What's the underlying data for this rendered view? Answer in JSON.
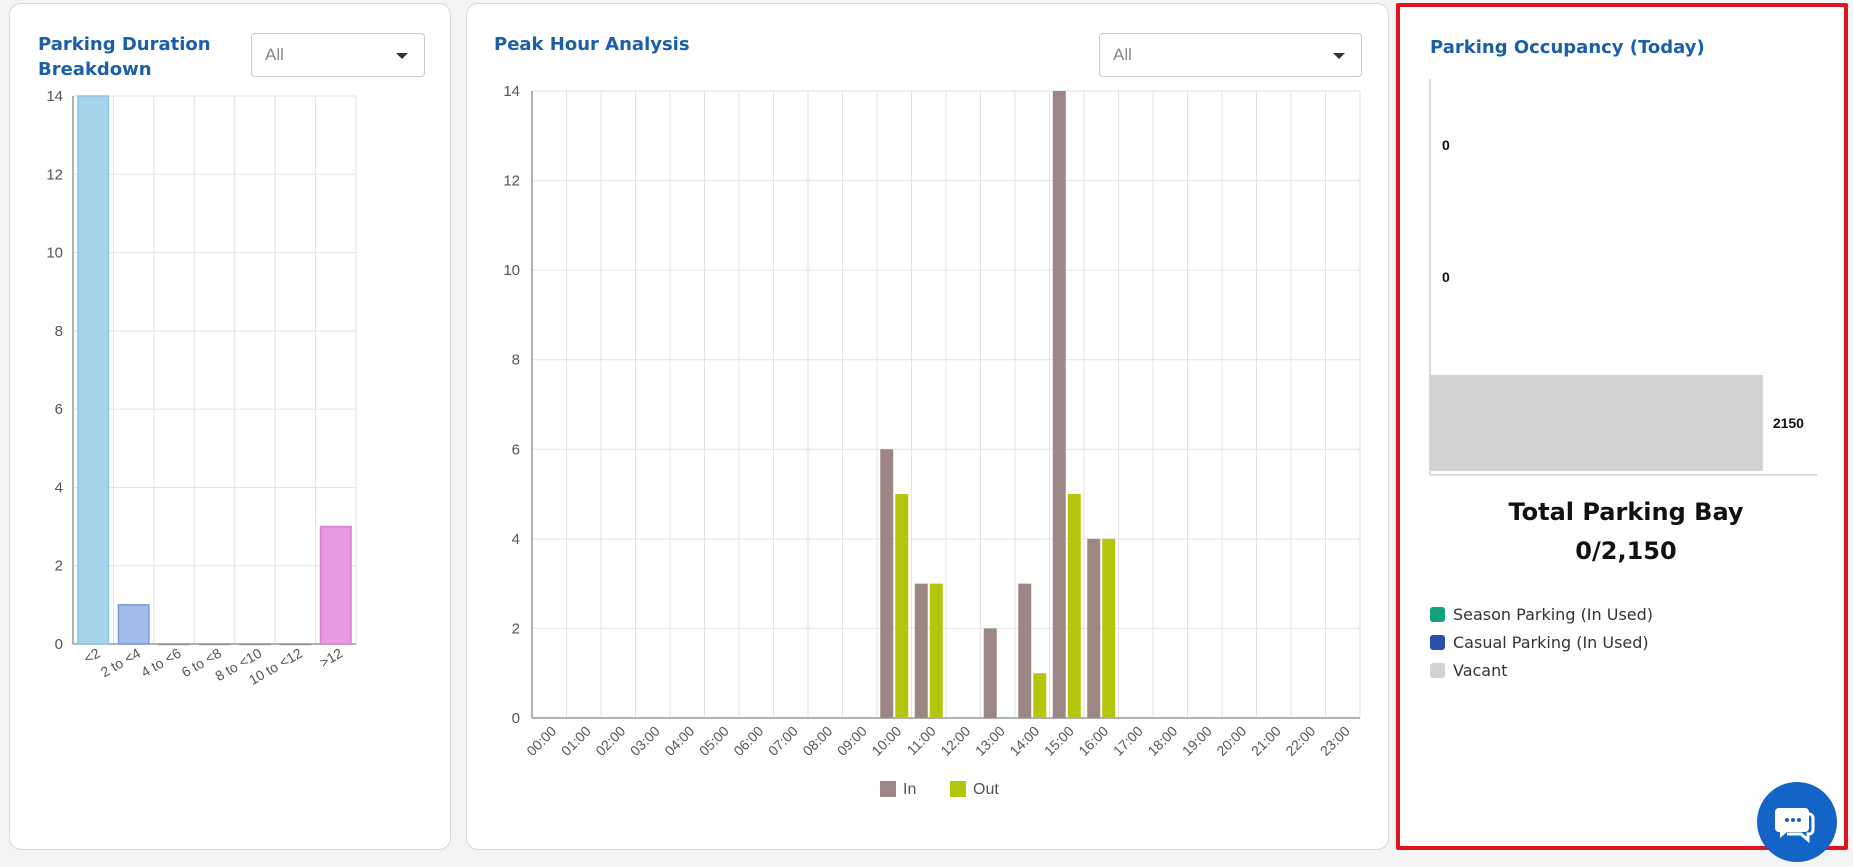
{
  "duration_card": {
    "title_line1": "Parking Duration",
    "title_line2": "Breakdown",
    "filter_value": "All"
  },
  "peak_card": {
    "title": "Peak Hour Analysis",
    "filter_value": "All"
  },
  "occupancy_card": {
    "title": "Parking Occupancy (Today)",
    "total_title": "Total Parking Bay",
    "total_value": "0/2,150",
    "legend": [
      {
        "label": "Season Parking (In Used)",
        "color": "#12a27c"
      },
      {
        "label": "Casual Parking (In Used)",
        "color": "#2d4fb0"
      },
      {
        "label": "Vacant",
        "color": "#d2d2d2"
      }
    ]
  },
  "chat": {
    "icon": "chat-bubble-icon",
    "color": "#1464c8"
  },
  "chart_data": [
    {
      "type": "bar",
      "categories": [
        "<2",
        "2 to <4",
        "4 to <6",
        "6 to <8",
        "8 to <10",
        "10 to <12",
        ">12"
      ],
      "values": [
        14,
        1,
        0,
        0,
        0,
        0,
        3
      ],
      "colors": [
        "#a6d4ea",
        "#a3bbe8",
        "#bbbbbb",
        "#bbbbbb",
        "#bbbbbb",
        "#bbbbbb",
        "#e89bdf"
      ],
      "border_colors": [
        "#8bc6e4",
        "#7a9be0",
        "#999999",
        "#999999",
        "#999999",
        "#999999",
        "#d97fd0"
      ],
      "ylim": [
        0,
        14
      ],
      "yticks": [
        0,
        2,
        4,
        6,
        8,
        10,
        12,
        14
      ],
      "grid": true
    },
    {
      "type": "bar",
      "categories": [
        "00:00",
        "01:00",
        "02:00",
        "03:00",
        "04:00",
        "05:00",
        "06:00",
        "07:00",
        "08:00",
        "09:00",
        "10:00",
        "11:00",
        "12:00",
        "13:00",
        "14:00",
        "15:00",
        "16:00",
        "17:00",
        "18:00",
        "19:00",
        "20:00",
        "21:00",
        "22:00",
        "23:00"
      ],
      "series": [
        {
          "name": "In",
          "color": "#9c8784",
          "values": [
            0,
            0,
            0,
            0,
            0,
            0,
            0,
            0,
            0,
            0,
            6,
            3,
            0,
            2,
            3,
            14,
            4,
            0,
            0,
            0,
            0,
            0,
            0,
            0
          ]
        },
        {
          "name": "Out",
          "color": "#b3c60c",
          "values": [
            0,
            0,
            0,
            0,
            0,
            0,
            0,
            0,
            0,
            0,
            5,
            3,
            0,
            0,
            1,
            5,
            4,
            0,
            0,
            0,
            0,
            0,
            0,
            0
          ]
        }
      ],
      "ylim": [
        0,
        14
      ],
      "yticks": [
        0,
        2,
        4,
        6,
        8,
        10,
        12,
        14
      ],
      "grid": true,
      "legend_position": "bottom"
    },
    {
      "type": "bar",
      "orientation": "horizontal",
      "categories": [
        "Season Parking (In Used)",
        "Casual Parking (In Used)",
        "Vacant"
      ],
      "values": [
        0,
        0,
        2150
      ],
      "colors": [
        "#12a27c",
        "#2d4fb0",
        "#d2d2d2"
      ],
      "data_labels": [
        "0",
        "0",
        "2150"
      ],
      "xlim": [
        0,
        2500
      ]
    }
  ]
}
